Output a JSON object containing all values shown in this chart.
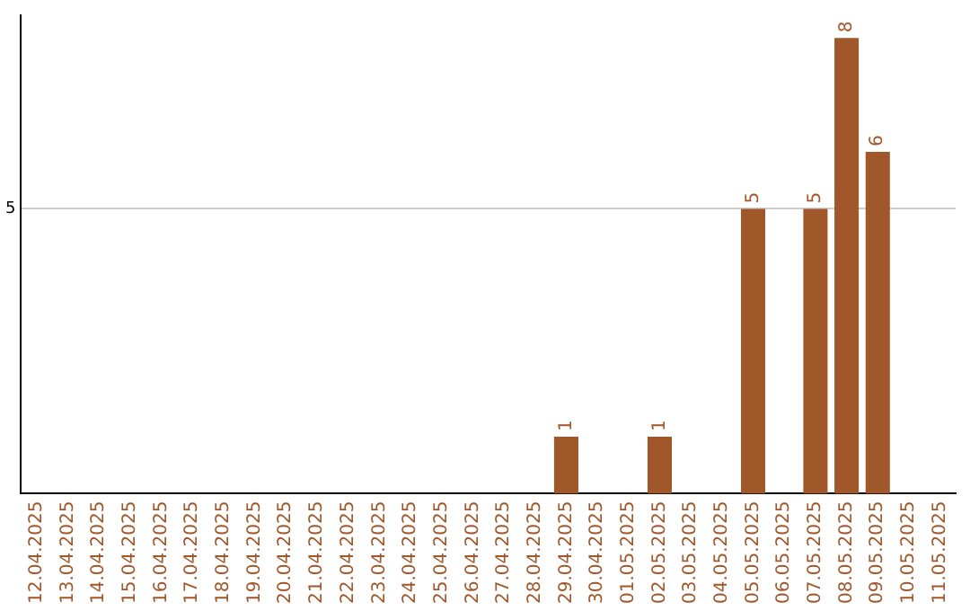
{
  "chart_data": {
    "type": "bar",
    "categories": [
      "12.04.2025",
      "13.04.2025",
      "14.04.2025",
      "15.04.2025",
      "16.04.2025",
      "17.04.2025",
      "18.04.2025",
      "19.04.2025",
      "20.04.2025",
      "21.04.2025",
      "22.04.2025",
      "23.04.2025",
      "24.04.2025",
      "25.04.2025",
      "26.04.2025",
      "27.04.2025",
      "28.04.2025",
      "29.04.2025",
      "30.04.2025",
      "01.05.2025",
      "02.05.2025",
      "03.05.2025",
      "04.05.2025",
      "05.05.2025",
      "06.05.2025",
      "07.05.2025",
      "08.05.2025",
      "09.05.2025",
      "10.05.2025",
      "11.05.2025"
    ],
    "values": [
      null,
      null,
      null,
      null,
      null,
      null,
      null,
      null,
      null,
      null,
      null,
      null,
      null,
      null,
      null,
      null,
      null,
      1,
      null,
      null,
      1,
      null,
      null,
      5,
      null,
      5,
      8,
      6,
      null,
      null
    ],
    "color": "#a0572a",
    "ylim": [
      0,
      8.4
    ],
    "yticks": [
      5
    ],
    "grid": "y",
    "legend": false,
    "data_labels": true
  }
}
